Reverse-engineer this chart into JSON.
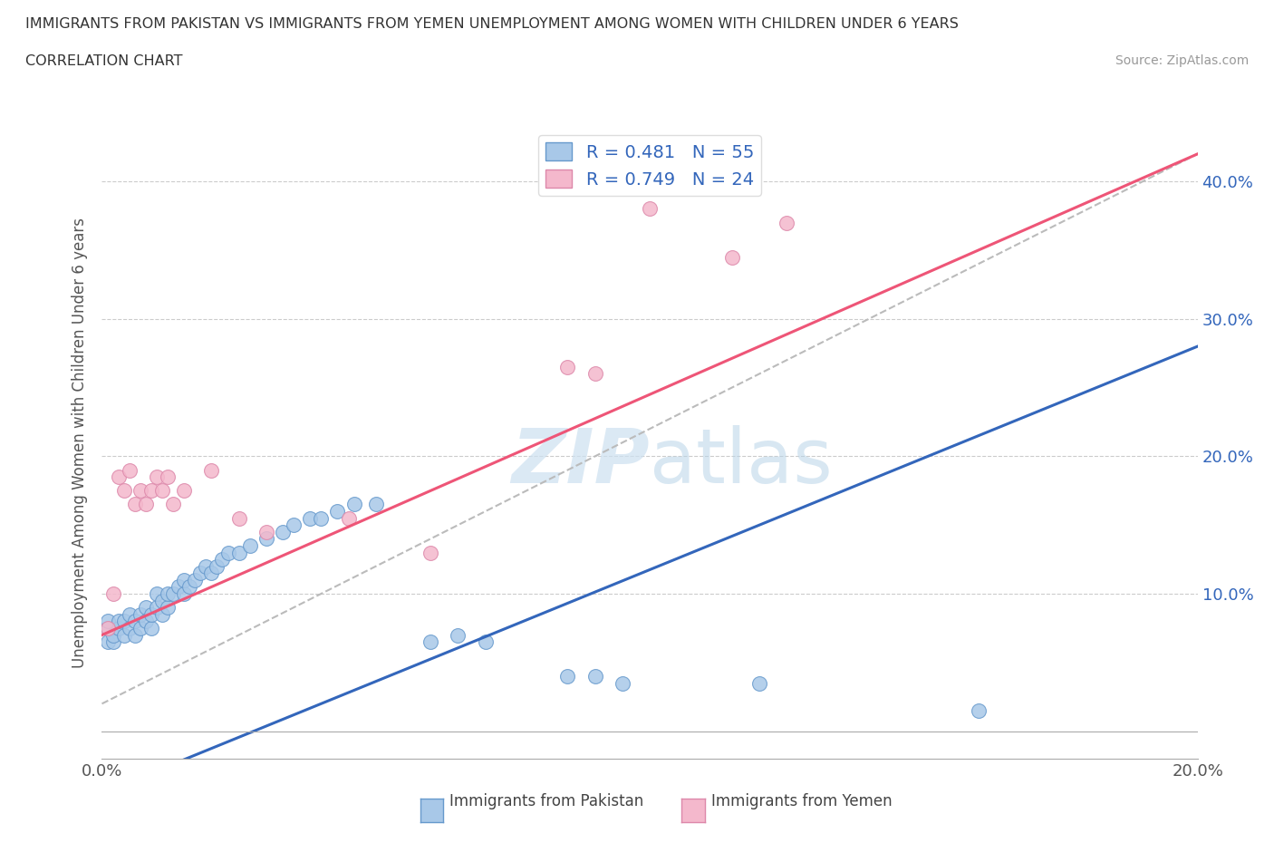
{
  "title_line1": "IMMIGRANTS FROM PAKISTAN VS IMMIGRANTS FROM YEMEN UNEMPLOYMENT AMONG WOMEN WITH CHILDREN UNDER 6 YEARS",
  "title_line2": "CORRELATION CHART",
  "source": "Source: ZipAtlas.com",
  "ylabel": "Unemployment Among Women with Children Under 6 years",
  "xlim": [
    0.0,
    0.2
  ],
  "ylim": [
    -0.02,
    0.44
  ],
  "pakistan_R": 0.481,
  "pakistan_N": 55,
  "yemen_R": 0.749,
  "yemen_N": 24,
  "pakistan_color": "#a8c8e8",
  "pakistan_edge": "#6699cc",
  "yemen_color": "#f4b8cc",
  "yemen_edge": "#dd88aa",
  "pakistan_line_color": "#3366bb",
  "yemen_line_color": "#ee5577",
  "trendline_dash_color": "#bbbbbb",
  "label_color": "#3366bb",
  "watermark_color": "#cce0f0",
  "pakistan_line": [
    0.0,
    -0.045,
    0.2,
    0.28
  ],
  "yemen_line": [
    0.0,
    0.07,
    0.2,
    0.42
  ],
  "dash_line": [
    0.0,
    0.02,
    0.2,
    0.42
  ],
  "pakistan_points": [
    [
      0.001,
      0.065
    ],
    [
      0.001,
      0.075
    ],
    [
      0.001,
      0.08
    ],
    [
      0.002,
      0.065
    ],
    [
      0.002,
      0.07
    ],
    [
      0.003,
      0.075
    ],
    [
      0.003,
      0.08
    ],
    [
      0.004,
      0.07
    ],
    [
      0.004,
      0.08
    ],
    [
      0.005,
      0.075
    ],
    [
      0.005,
      0.085
    ],
    [
      0.006,
      0.07
    ],
    [
      0.006,
      0.08
    ],
    [
      0.007,
      0.075
    ],
    [
      0.007,
      0.085
    ],
    [
      0.008,
      0.08
    ],
    [
      0.008,
      0.09
    ],
    [
      0.009,
      0.075
    ],
    [
      0.009,
      0.085
    ],
    [
      0.01,
      0.09
    ],
    [
      0.01,
      0.1
    ],
    [
      0.011,
      0.085
    ],
    [
      0.011,
      0.095
    ],
    [
      0.012,
      0.09
    ],
    [
      0.012,
      0.1
    ],
    [
      0.013,
      0.1
    ],
    [
      0.014,
      0.105
    ],
    [
      0.015,
      0.1
    ],
    [
      0.015,
      0.11
    ],
    [
      0.016,
      0.105
    ],
    [
      0.017,
      0.11
    ],
    [
      0.018,
      0.115
    ],
    [
      0.019,
      0.12
    ],
    [
      0.02,
      0.115
    ],
    [
      0.021,
      0.12
    ],
    [
      0.022,
      0.125
    ],
    [
      0.023,
      0.13
    ],
    [
      0.025,
      0.13
    ],
    [
      0.027,
      0.135
    ],
    [
      0.03,
      0.14
    ],
    [
      0.033,
      0.145
    ],
    [
      0.035,
      0.15
    ],
    [
      0.038,
      0.155
    ],
    [
      0.04,
      0.155
    ],
    [
      0.043,
      0.16
    ],
    [
      0.046,
      0.165
    ],
    [
      0.05,
      0.165
    ],
    [
      0.06,
      0.065
    ],
    [
      0.065,
      0.07
    ],
    [
      0.07,
      0.065
    ],
    [
      0.085,
      0.04
    ],
    [
      0.09,
      0.04
    ],
    [
      0.095,
      0.035
    ],
    [
      0.12,
      0.035
    ],
    [
      0.16,
      0.015
    ]
  ],
  "yemen_points": [
    [
      0.001,
      0.075
    ],
    [
      0.002,
      0.1
    ],
    [
      0.003,
      0.185
    ],
    [
      0.004,
      0.175
    ],
    [
      0.005,
      0.19
    ],
    [
      0.006,
      0.165
    ],
    [
      0.007,
      0.175
    ],
    [
      0.008,
      0.165
    ],
    [
      0.009,
      0.175
    ],
    [
      0.01,
      0.185
    ],
    [
      0.011,
      0.175
    ],
    [
      0.012,
      0.185
    ],
    [
      0.013,
      0.165
    ],
    [
      0.015,
      0.175
    ],
    [
      0.02,
      0.19
    ],
    [
      0.025,
      0.155
    ],
    [
      0.03,
      0.145
    ],
    [
      0.045,
      0.155
    ],
    [
      0.06,
      0.13
    ],
    [
      0.085,
      0.265
    ],
    [
      0.09,
      0.26
    ],
    [
      0.1,
      0.38
    ],
    [
      0.115,
      0.345
    ],
    [
      0.125,
      0.37
    ]
  ]
}
